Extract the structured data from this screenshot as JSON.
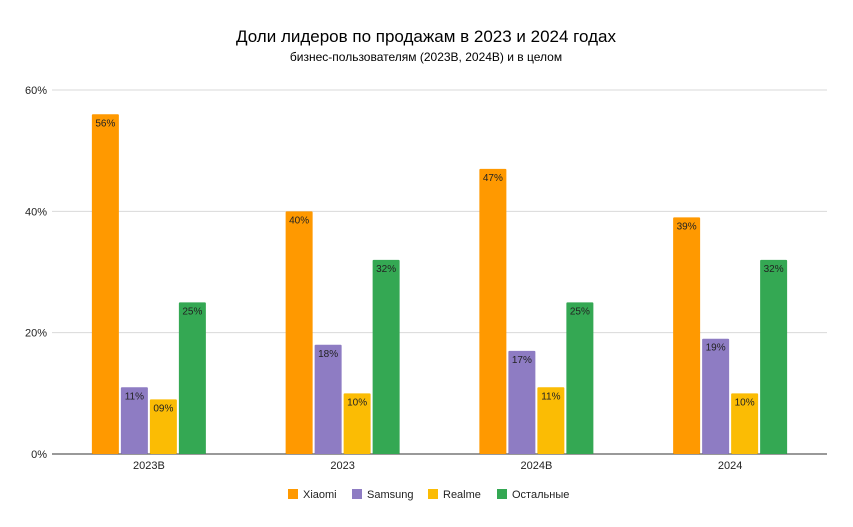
{
  "chart_data": {
    "type": "bar",
    "title": "Доли лидеров по продажам в 2023 и 2024 годах",
    "subtitle": "бизнес-пользователям (2023B, 2024B) и в целом",
    "categories": [
      "2023B",
      "2023",
      "2024B",
      "2024"
    ],
    "series": [
      {
        "name": "Xiaomi",
        "color": "#ff9900",
        "values": [
          56,
          40,
          47,
          39
        ],
        "labels": [
          "56%",
          "40%",
          "47%",
          "39%"
        ]
      },
      {
        "name": "Samsung",
        "color": "#8e7cc3",
        "values": [
          11,
          18,
          17,
          19
        ],
        "labels": [
          "11%",
          "18%",
          "17%",
          "19%"
        ]
      },
      {
        "name": "Realme",
        "color": "#fbbc04",
        "values": [
          9,
          10,
          11,
          10
        ],
        "labels": [
          "09%",
          "10%",
          "11%",
          "10%"
        ]
      },
      {
        "name": "Остальные",
        "color": "#34a853",
        "values": [
          25,
          32,
          25,
          32
        ],
        "labels": [
          "25%",
          "32%",
          "25%",
          "32%"
        ]
      }
    ],
    "ylim": [
      0,
      60
    ],
    "yticks": [
      0,
      20,
      40,
      60
    ],
    "ytick_labels": [
      "0%",
      "20%",
      "40%",
      "60%"
    ],
    "grid": true,
    "legend": "bottom"
  }
}
